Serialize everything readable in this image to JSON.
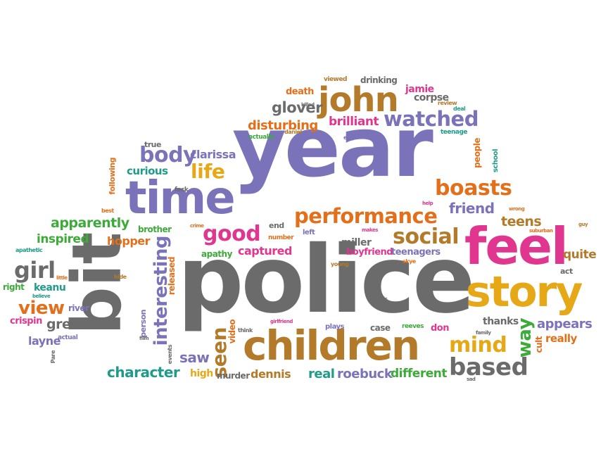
{
  "colors": {
    "gray": "#6b6b6b",
    "purple": "#7b73b9",
    "gold": "#e6a817",
    "pink": "#e0368f",
    "orange": "#e36f1a",
    "brown": "#b37a2a",
    "green": "#3daa3a",
    "teal": "#1f9b8a"
  },
  "words": {
    "year": "year",
    "police": "police",
    "bit": "bit",
    "children": "children",
    "feel": "feel",
    "story": "story",
    "time": "time",
    "john": "john",
    "performance": "performance",
    "social": "social",
    "watched": "watched",
    "boasts": "boasts",
    "body": "body",
    "life": "life",
    "good": "good",
    "based": "based",
    "mind": "mind",
    "interesting": "interesting",
    "way": "way",
    "girl": "girl",
    "view": "view",
    "seen": "seen",
    "brilliant": "brilliant",
    "disturbing": "disturbing",
    "glover": "glover",
    "friend": "friend",
    "appears": "appears",
    "character": "character",
    "apparently": "apparently",
    "inspired": "inspired",
    "hopper": "hopper",
    "clarissa": "clarissa",
    "curious": "curious",
    "teens": "teens",
    "quite": "quite",
    "great": "great",
    "keanu": "keanu",
    "layne": "layne",
    "crispin": "crispin",
    "saw": "saw",
    "dennis": "dennis",
    "real": "real",
    "roebuck": "roebuck",
    "different": "different",
    "murder": "murder",
    "high": "high",
    "boyfriend": "boyfriend",
    "teenagers": "teenagers",
    "miller": "miller",
    "captured": "captured",
    "apathy": "apathy",
    "thanks": "thanks",
    "really": "really",
    "death": "death",
    "jamie": "jamie",
    "corpse": "corpse",
    "drinking": "drinking",
    "viewed": "viewed",
    "review": "review",
    "deal": "deal",
    "teenage": "teenage",
    "edge": "edge",
    "daniel": "daniel",
    "actually": "actually",
    "true": "true",
    "following": "following",
    "feck": "feck",
    "best": "best",
    "brother": "brother",
    "crime": "crime",
    "end": "end",
    "number": "number",
    "left": "left",
    "makes": "makes",
    "young": "young",
    "skye": "skye",
    "people": "people",
    "school": "school",
    "help": "help",
    "wrong": "wrong",
    "suburban": "suburban",
    "guy": "guy",
    "act": "act",
    "cult": "cult",
    "don": "don",
    "case": "case",
    "reeves": "reeves",
    "plays": "plays",
    "kids": "kids",
    "family": "family",
    "sad": "sad",
    "think": "think",
    "girlfriend": "girlfriend",
    "video": "video",
    "released": "released",
    "person": "person",
    "film": "film",
    "events": "events",
    "hide": "hide",
    "believe": "believe",
    "little": "little",
    "right": "right",
    "river": "river",
    "actual": "actual",
    "pare": "Pare",
    "apathetic": "apathetic",
    "killed": "killed"
  }
}
